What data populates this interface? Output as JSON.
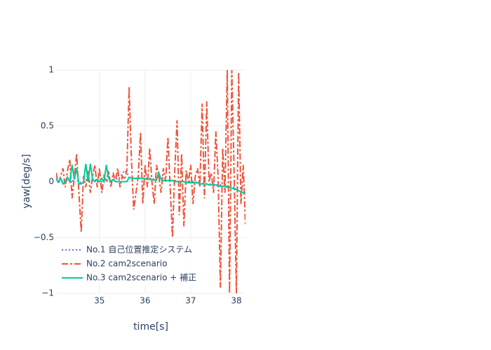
{
  "chart_data": {
    "type": "line",
    "x_label": "time[s]",
    "y_label": "yaw[deg/s]",
    "x": [
      34.05,
      34.1,
      34.15,
      34.2,
      34.25,
      34.3,
      34.35,
      34.4,
      34.45,
      34.5,
      34.55,
      34.6,
      34.65,
      34.7,
      34.75,
      34.8,
      34.85,
      34.9,
      34.95,
      35,
      35.05,
      35.1,
      35.15,
      35.2,
      35.25,
      35.3,
      35.35,
      35.4,
      35.45,
      35.5,
      35.55,
      35.6,
      35.65,
      35.7,
      35.75,
      35.8,
      35.85,
      35.9,
      35.95,
      36,
      36.05,
      36.1,
      36.15,
      36.2,
      36.25,
      36.3,
      36.35,
      36.4,
      36.45,
      36.5,
      36.55,
      36.6,
      36.65,
      36.7,
      36.75,
      36.8,
      36.85,
      36.9,
      36.95,
      37,
      37.05,
      37.1,
      37.15,
      37.2,
      37.25,
      37.3,
      37.35,
      37.4,
      37.45,
      37.5,
      37.55,
      37.6,
      37.65,
      37.7,
      37.75,
      37.8,
      37.85,
      37.9,
      37.95,
      38,
      38.05,
      38.1,
      38.15,
      38.2
    ],
    "series": [
      {
        "name": "No.1 自己位置推定システム",
        "color": "#636efa",
        "dash": "dot",
        "values": [
          0.03,
          0.01,
          0.02,
          0,
          -0.01,
          0.02,
          0.01,
          0,
          0.03,
          0.02,
          0,
          -0.01,
          0,
          0.02,
          0.01,
          0,
          0.01,
          0.02,
          0,
          0.01,
          0,
          0.02,
          0.01,
          0,
          0.01,
          0.02,
          0.03,
          0.02,
          0.04,
          0.07,
          0.1,
          0.08,
          0.04,
          0.03,
          0.03,
          0.03,
          0.03,
          0.03,
          0.03,
          0.03,
          0.03,
          0.03,
          0.03,
          0.02,
          0.03,
          0.05,
          0.04,
          0.03,
          0.02,
          0.01,
          0.01,
          0.01,
          0.01,
          0,
          0,
          0,
          0,
          0,
          0,
          0,
          0,
          0,
          -0.01,
          -0.01,
          -0.01,
          -0.02,
          -0.02,
          -0.02,
          -0.02,
          -0.02,
          -0.03,
          -0.03,
          -0.03,
          -0.04,
          -0.04,
          -0.04,
          -0.04,
          -0.05,
          -0.05,
          -0.05,
          -0.06,
          -0.06,
          -0.06,
          -0.07
        ]
      },
      {
        "name": "No.2 cam2scenario",
        "color": "#ef553b",
        "dash": "dashdot",
        "values": [
          0.08,
          -0.02,
          0.05,
          0.12,
          -0.05,
          0.1,
          0.2,
          -0.15,
          0.05,
          0.25,
          -0.1,
          -0.45,
          0.05,
          -0.05,
          0.1,
          -0.1,
          0.05,
          0.15,
          -0.05,
          0.12,
          -0.1,
          0.05,
          0,
          0.1,
          -0.05,
          0.08,
          0,
          0.12,
          -0.05,
          0.05,
          0.02,
          0.1,
          0.85,
          0.2,
          -0.25,
          -0.1,
          0.05,
          0.44,
          -0.2,
          0.15,
          -0.05,
          0.3,
          0,
          -0.2,
          0.15,
          0.05,
          -0.1,
          0.12,
          0,
          0.4,
          -0.05,
          -0.5,
          0.1,
          0.55,
          -0.3,
          0.25,
          -0.4,
          0.1,
          0,
          0.15,
          -0.2,
          0.05,
          0.12,
          -0.05,
          0.7,
          -0.15,
          0.72,
          0,
          0.08,
          -0.1,
          0.45,
          0.05,
          -0.95,
          0.3,
          -0.1,
          1,
          -1,
          1,
          0.1,
          -1,
          0.98,
          -0.2,
          0.15,
          -0.4
        ]
      },
      {
        "name": "No.3 cam2scenario + 補正",
        "color": "#00cc96",
        "dash": "solid",
        "values": [
          0.02,
          0,
          0.03,
          -0.02,
          0,
          0.04,
          0,
          0.15,
          0.02,
          0.12,
          -0.02,
          -0.02,
          -0.01,
          0.16,
          0,
          0.16,
          0.02,
          0,
          0.02,
          0,
          0.03,
          0,
          0.15,
          0.03,
          0,
          0.02,
          0,
          0,
          0,
          0,
          0,
          0,
          0.04,
          0.03,
          0.03,
          0.03,
          0.03,
          0.03,
          0.03,
          0.025,
          0.02,
          0.02,
          0.02,
          0.015,
          0.015,
          0.08,
          0.02,
          0.01,
          0.01,
          0.01,
          0.01,
          0.01,
          0,
          0,
          0,
          0,
          0,
          -0.01,
          -0.01,
          -0.01,
          -0.01,
          -0.01,
          -0.01,
          -0.02,
          -0.02,
          -0.02,
          -0.02,
          -0.03,
          -0.03,
          -0.03,
          -0.03,
          -0.04,
          -0.04,
          -0.04,
          -0.04,
          -0.05,
          -0.05,
          -0.06,
          -0.06,
          -0.07,
          -0.08,
          -0.09,
          -0.1,
          -0.1
        ]
      }
    ],
    "xlim": [
      34.05,
      38.2
    ],
    "xticks": [
      35,
      36,
      37,
      38
    ],
    "ylim": [
      -1,
      1
    ],
    "yticks": [
      {
        "value": -1,
        "label": "−1"
      },
      {
        "value": -0.5,
        "label": "−0.5"
      },
      0,
      0.5,
      1
    ],
    "grid": true,
    "legend": "bottom-left"
  }
}
